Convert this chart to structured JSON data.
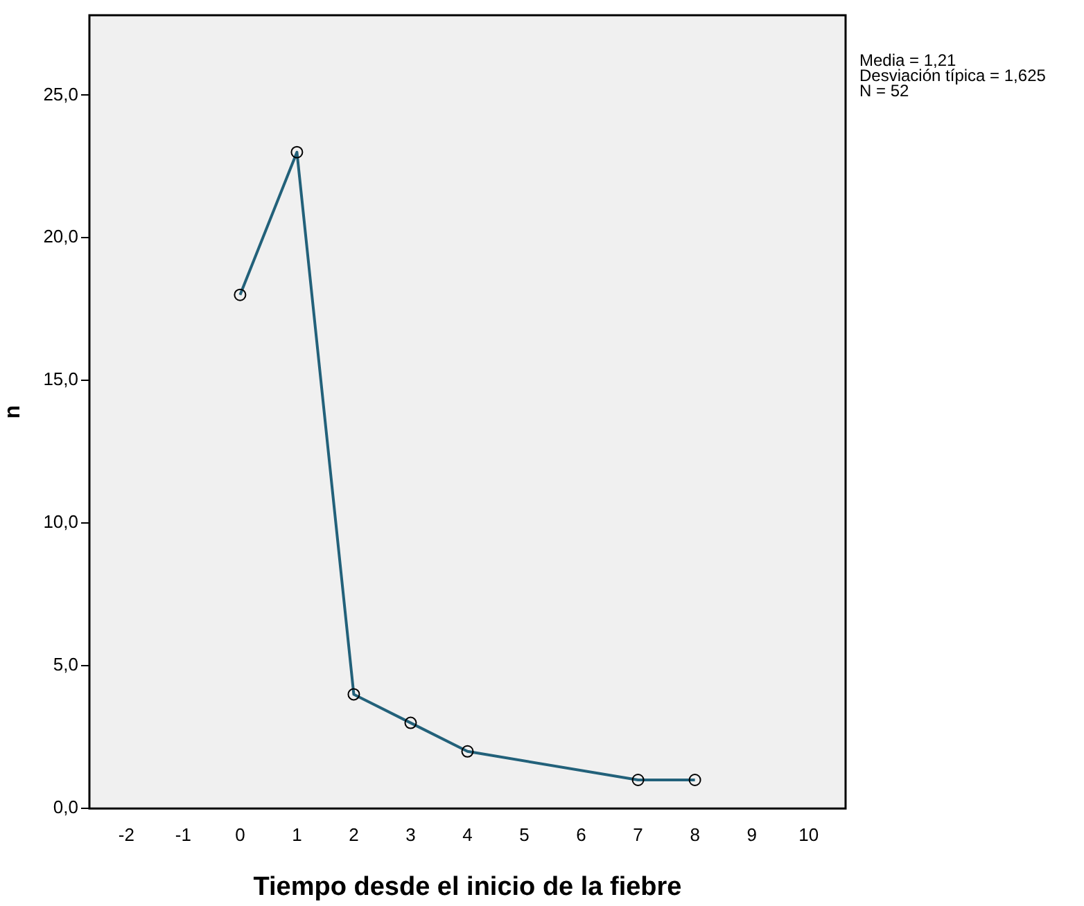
{
  "chart_data": {
    "type": "line",
    "xlabel": "Tiempo desde el inicio de la fiebre",
    "ylabel": "n",
    "annotations": [
      "Media = 1,21",
      "Desviación típica = 1,625",
      "N = 52"
    ],
    "x": [
      0,
      1,
      2,
      3,
      4,
      7,
      8
    ],
    "series": [
      {
        "color": "#22617a",
        "values": [
          18,
          23,
          4,
          3,
          2,
          1,
          1
        ]
      }
    ],
    "xlim": [
      -2.65,
      10.65
    ],
    "xticks": [
      -2,
      -1,
      0,
      1,
      2,
      3,
      4,
      5,
      6,
      7,
      8,
      9,
      10
    ],
    "ylim": [
      0,
      27.8
    ],
    "yticks": [
      {
        "value": 0,
        "label": "0,0"
      },
      {
        "value": 5,
        "label": "5,0"
      },
      {
        "value": 10,
        "label": "10,0"
      },
      {
        "value": 15,
        "label": "15,0"
      },
      {
        "value": 20,
        "label": "20,0"
      },
      {
        "value": 25,
        "label": "25,0"
      }
    ],
    "grid": false,
    "legend": false,
    "marker": "circle",
    "line_style": "solid"
  }
}
